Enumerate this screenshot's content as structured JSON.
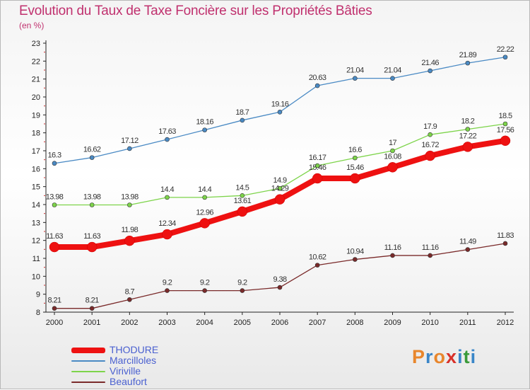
{
  "header": {
    "title": "Evolution du Taux de Taxe Foncière sur les Propriétés Bâties",
    "unit": "(en %)"
  },
  "logo": {
    "text": "Proxiti",
    "colors": [
      "#e8862c",
      "#3a86c8",
      "#e8862c",
      "#d8312a",
      "#3a86c8",
      "#3a9a3a",
      "#3a86c8"
    ]
  },
  "chart_data": {
    "type": "line",
    "title": "Evolution du Taux de Taxe Foncière sur les Propriétés Bâties",
    "ylabel": "(en %)",
    "x": [
      "2000",
      "2001",
      "2002",
      "2003",
      "2004",
      "2005",
      "2006",
      "2007",
      "2008",
      "2009",
      "2010",
      "2011",
      "2012"
    ],
    "ylim": [
      8,
      23
    ],
    "yticks": [
      "8",
      "9",
      "10",
      "11",
      "12",
      "13",
      "14",
      "15",
      "16",
      "17",
      "18",
      "19",
      "20",
      "21",
      "22",
      "23"
    ],
    "grid": false,
    "legend_position": "bottom-left",
    "series": [
      {
        "name": "Marcilloles",
        "color": "#4a8ac4",
        "values": [
          16.3,
          16.62,
          17.12,
          17.63,
          18.16,
          18.7,
          19.16,
          20.63,
          21.04,
          21.04,
          21.46,
          21.89,
          22.22
        ],
        "labels": [
          "16.3",
          "16.62",
          "17.12",
          "17.63",
          "18.16",
          "18.7",
          "19.16",
          "20.63",
          "21.04",
          "21.04",
          "21.46",
          "21.89",
          "22.22"
        ]
      },
      {
        "name": "Viriville",
        "color": "#7dd44a",
        "values": [
          13.98,
          13.98,
          13.98,
          14.4,
          14.4,
          14.5,
          14.9,
          16.17,
          16.6,
          17,
          17.9,
          18.2,
          18.5
        ],
        "labels": [
          "13.98",
          "13.98",
          "13.98",
          "14.4",
          "14.4",
          "14.5",
          "14.9",
          "16.17",
          "16.6",
          "17",
          "17.9",
          "18.2",
          "18.5"
        ]
      },
      {
        "name": "THODURE",
        "color": "#ee1111",
        "values": [
          11.63,
          11.63,
          11.98,
          12.34,
          12.96,
          13.61,
          14.29,
          15.46,
          15.46,
          16.08,
          16.72,
          17.22,
          17.56
        ],
        "labels": [
          "11.63",
          "11.63",
          "11.98",
          "12.34",
          "12.96",
          "13.61",
          "14.29",
          "15.46",
          "15.46",
          "16.08",
          "16.72",
          "17.22",
          "17.56"
        ]
      },
      {
        "name": "Beaufort",
        "color": "#7a2a2a",
        "values": [
          8.21,
          8.21,
          8.7,
          9.2,
          9.2,
          9.2,
          9.38,
          10.62,
          10.94,
          11.16,
          11.16,
          11.49,
          11.83
        ],
        "labels": [
          "8.21",
          "8.21",
          "8.7",
          "9.2",
          "9.2",
          "9.2",
          "9.38",
          "10.62",
          "10.94",
          "11.16",
          "11.16",
          "11.49",
          "11.83"
        ]
      }
    ]
  },
  "legend": [
    {
      "label": "THODURE",
      "color": "#ee1111",
      "weight": "thick"
    },
    {
      "label": "Marcilloles",
      "color": "#4a8ac4",
      "weight": "thin"
    },
    {
      "label": "Viriville",
      "color": "#7dd44a",
      "weight": "thin"
    },
    {
      "label": "Beaufort",
      "color": "#7a2a2a",
      "weight": "thin"
    }
  ]
}
